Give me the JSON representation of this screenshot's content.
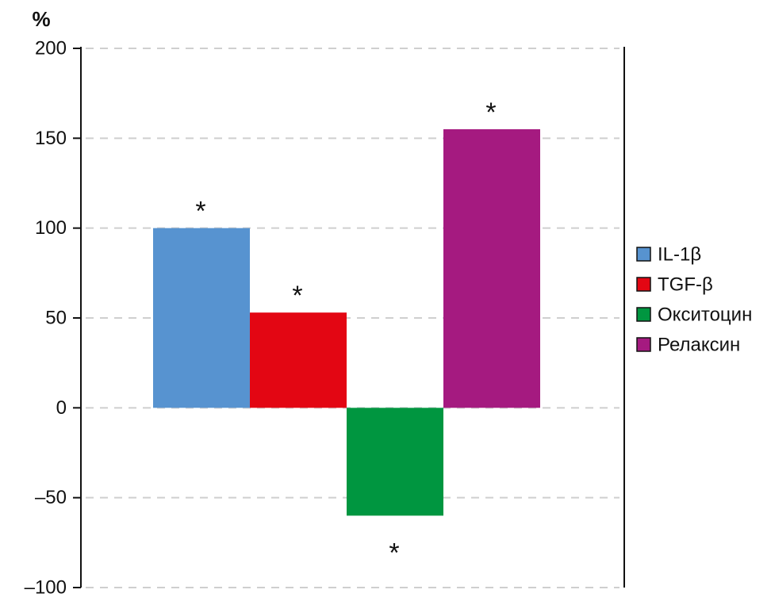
{
  "chart_data": {
    "type": "bar",
    "title": "",
    "xlabel": "",
    "ylabel": "%",
    "ylim": [
      -100,
      200
    ],
    "yticks": [
      200,
      150,
      100,
      50,
      0,
      -50,
      -100
    ],
    "ytick_labels": [
      "200",
      "150",
      "100",
      "50",
      "0",
      "–50",
      "–100"
    ],
    "grid": true,
    "legend_position": "right",
    "series": [
      {
        "name": "IL-1β",
        "value": 100,
        "color": "#5793d0",
        "annotation": "*"
      },
      {
        "name": "TGF-β",
        "value": 53,
        "color": "#e30613",
        "annotation": "*"
      },
      {
        "name": "Окситоцин",
        "value": -60,
        "color": "#009640",
        "annotation": "*"
      },
      {
        "name": "Релаксин",
        "value": 155,
        "color": "#a51a80",
        "annotation": "*"
      }
    ]
  }
}
